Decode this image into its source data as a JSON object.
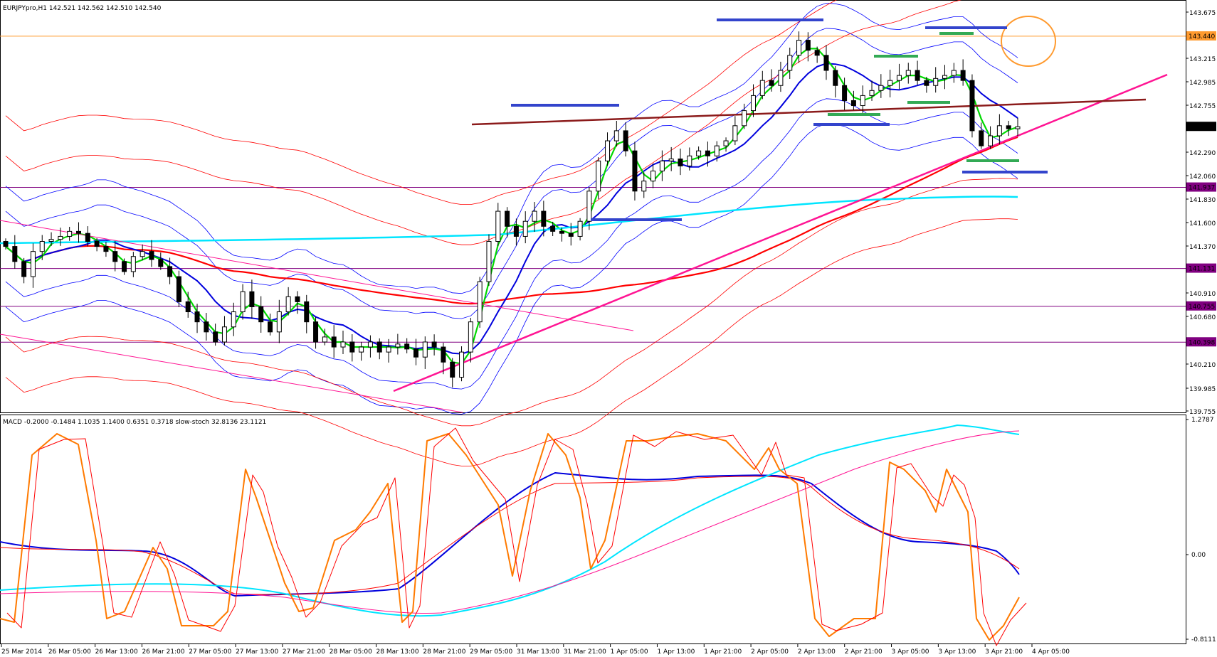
{
  "window": {
    "main_header": "EURJPYpro,H1  142.521 142.562 142.510 142.540",
    "sub_header": "MACD -0.2000 -0.1484 1.1035 1.1400 0.6351 0.3718  slow-stoch 32.8136 23.1121"
  },
  "colors": {
    "background": "#ffffff",
    "frame": "#000000",
    "orange_level": "#ff9a2e",
    "purple_level": "#800080",
    "purple_label_bg": "#800080",
    "orange_label_bg": "#ff9a2e",
    "current_price_bg": "#000000",
    "channel_red": "#ff0000",
    "bollinger_blue": "#0000ff",
    "ma_green": "#00d800",
    "ma_blue": "#0000dd",
    "ma_cyan": "#00e5ff",
    "trend_pink": "#ff1493",
    "neckline_brown": "#8b1a1a",
    "zone_blue": "#3344cc",
    "zone_green": "#33aa55",
    "stoch_orange": "#ff7a00"
  },
  "price_axis": {
    "ticks": [
      "143.675",
      "143.215",
      "142.985",
      "142.755",
      "142.290",
      "142.060",
      "141.830",
      "141.600",
      "141.370",
      "140.910",
      "140.680",
      "140.450",
      "140.210",
      "139.985",
      "139.755"
    ]
  },
  "level_labels": {
    "current": "142.540",
    "orange": "143.440",
    "purple": [
      "141.937",
      "141.131",
      "140.755",
      "140.398"
    ]
  },
  "indicator_axis": {
    "ticks": [
      "1.2787",
      "0.00",
      "-0.8111"
    ]
  },
  "time_axis": {
    "labels": [
      "25 Mar 2014",
      "26 Mar 05:00",
      "26 Mar 13:00",
      "26 Mar 21:00",
      "27 Mar 05:00",
      "27 Mar 13:00",
      "27 Mar 21:00",
      "28 Mar 05:00",
      "28 Mar 13:00",
      "28 Mar 21:00",
      "29 Mar 05:00",
      "31 Mar 13:00",
      "31 Mar 21:00",
      "1 Apr 05:00",
      "1 Apr 13:00",
      "1 Apr 21:00",
      "2 Apr 05:00",
      "2 Apr 13:00",
      "2 Apr 21:00",
      "3 Apr 05:00",
      "3 Apr 13:00",
      "3 Apr 21:00",
      "4 Apr 05:00"
    ]
  },
  "chart_data": {
    "type": "candlestick",
    "symbol": "EURJPYpro",
    "timeframe": "H1",
    "last_ohlc": {
      "open": 142.521,
      "high": 142.562,
      "low": 142.51,
      "close": 142.54
    },
    "price_range": [
      139.7,
      143.8
    ],
    "horizontal_levels": [
      143.44,
      141.937,
      141.131,
      140.755,
      140.398
    ],
    "close_path": [
      141.35,
      141.2,
      141.05,
      141.3,
      141.4,
      141.42,
      141.45,
      141.5,
      141.48,
      141.4,
      141.35,
      141.3,
      141.2,
      141.1,
      141.25,
      141.3,
      141.22,
      141.15,
      141.05,
      140.8,
      140.7,
      140.6,
      140.5,
      140.4,
      140.55,
      140.7,
      140.9,
      140.75,
      140.6,
      140.5,
      140.7,
      140.85,
      140.8,
      140.6,
      140.4,
      140.45,
      140.35,
      140.4,
      140.3,
      140.35,
      140.4,
      140.3,
      140.35,
      140.38,
      140.33,
      140.25,
      140.4,
      140.35,
      140.2,
      140.05,
      140.3,
      140.6,
      141.0,
      141.4,
      141.7,
      141.55,
      141.45,
      141.6,
      141.7,
      141.55,
      141.5,
      141.48,
      141.45,
      141.6,
      141.9,
      142.2,
      142.4,
      142.5,
      142.3,
      141.9,
      142.0,
      142.1,
      142.2,
      142.22,
      142.15,
      142.25,
      142.3,
      142.25,
      142.35,
      142.4,
      142.55,
      142.7,
      142.85,
      143.0,
      142.95,
      143.1,
      143.25,
      143.4,
      143.3,
      143.25,
      143.1,
      142.95,
      142.8,
      142.75,
      142.85,
      142.9,
      142.95,
      143.0,
      143.05,
      143.1,
      143.0,
      142.95,
      143.02,
      143.05,
      143.1,
      143.0,
      142.5,
      142.35,
      142.45,
      142.55,
      142.52,
      142.54
    ]
  }
}
